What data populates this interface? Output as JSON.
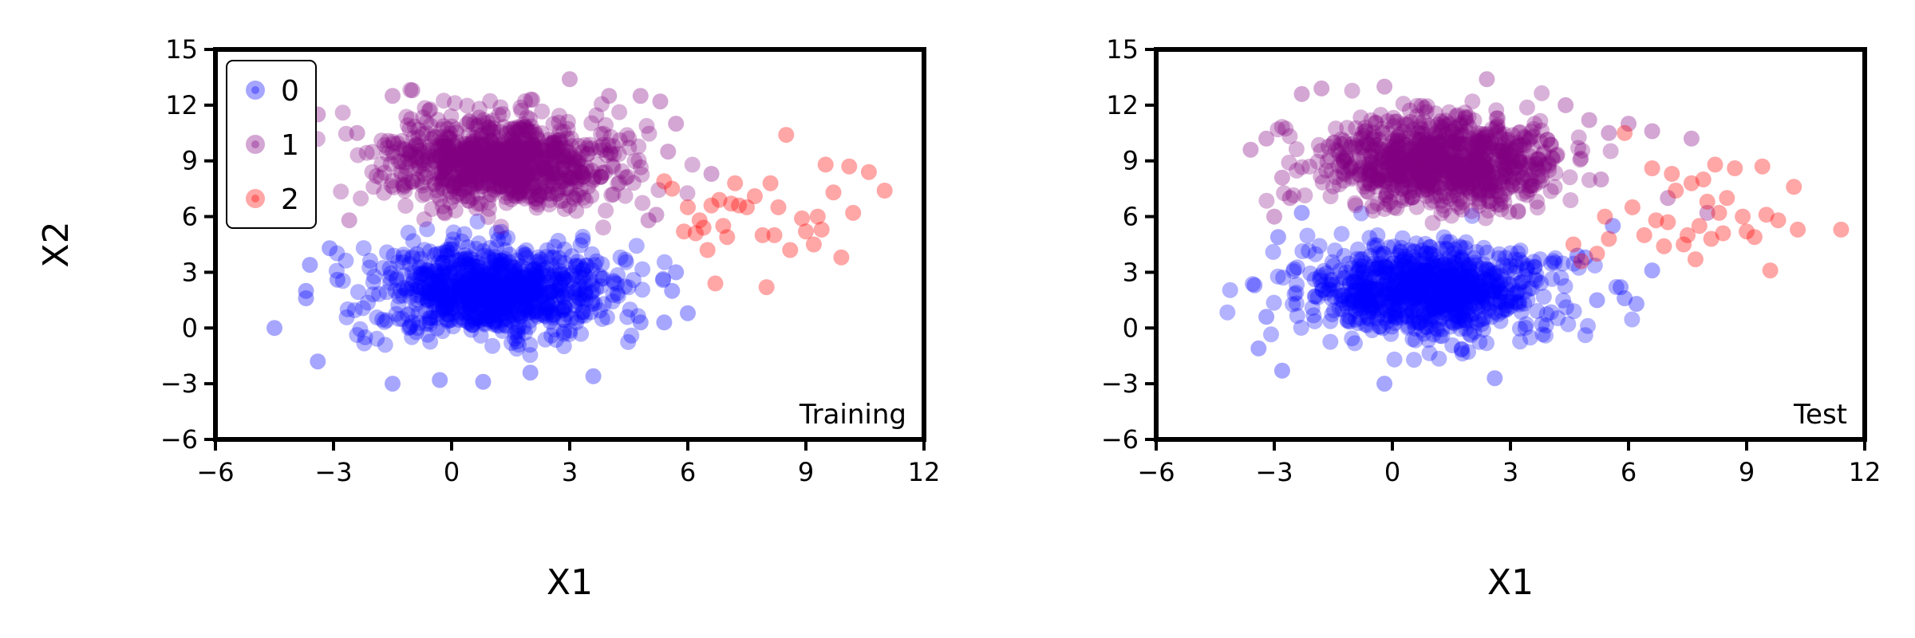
{
  "colors": {
    "0": "#0000ff",
    "1": "#800080",
    "2": "#ff0000"
  },
  "chart_data": [
    {
      "type": "scatter",
      "panel_label": "Training",
      "xlabel": "X1",
      "ylabel": "X2",
      "xlim": [
        -6,
        12
      ],
      "ylim": [
        -6,
        15
      ],
      "xticks": [
        -6,
        -3,
        0,
        3,
        6,
        9,
        12
      ],
      "yticks": [
        -6,
        -3,
        0,
        3,
        6,
        9,
        12,
        15
      ],
      "legend": {
        "placement": "top-left",
        "entries": [
          "0",
          "1",
          "2"
        ]
      },
      "grid": false,
      "clusters": [
        {
          "name": "0",
          "color": "#0000ff",
          "center": [
            1.0,
            2.0
          ],
          "spread": [
            1.5,
            1.2
          ],
          "count": 900
        },
        {
          "name": "1",
          "color": "#800080",
          "center": [
            1.3,
            8.9
          ],
          "spread": [
            1.5,
            1.2
          ],
          "count": 900
        }
      ],
      "series": [
        {
          "name": "0",
          "color": "#0000ff",
          "points": [
            [
              -4.5,
              0
            ],
            [
              -3.4,
              -1.8
            ],
            [
              -3.7,
              1.6
            ],
            [
              -3.7,
              2.0
            ],
            [
              -3.6,
              3.4
            ],
            [
              -3.1,
              4.3
            ],
            [
              -2.9,
              2.6
            ],
            [
              -1.5,
              -3.0
            ],
            [
              0.8,
              -2.9
            ],
            [
              -0.3,
              -2.8
            ],
            [
              3.6,
              -2.6
            ],
            [
              4.8,
              0.3
            ],
            [
              5.4,
              0.3
            ],
            [
              5.6,
              2.0
            ],
            [
              5.7,
              3.0
            ],
            [
              6.0,
              0.8
            ],
            [
              2.0,
              -2.4
            ]
          ]
        },
        {
          "name": "1",
          "color": "#800080",
          "points": [
            [
              -4.5,
              12.0
            ],
            [
              -3.4,
              11.5
            ],
            [
              -3.7,
              7.8
            ],
            [
              -2.6,
              5.8
            ],
            [
              -2.4,
              10.5
            ],
            [
              -1.5,
              12.5
            ],
            [
              -1.0,
              12.8
            ],
            [
              3.0,
              13.4
            ],
            [
              4.0,
              12.5
            ],
            [
              4.8,
              12.5
            ],
            [
              5.3,
              12.2
            ],
            [
              5.7,
              11.0
            ],
            [
              5.5,
              9.5
            ],
            [
              6.6,
              8.3
            ],
            [
              5.2,
              6.1
            ],
            [
              5.0,
              5.8
            ],
            [
              2.3,
              8.9
            ]
          ]
        },
        {
          "name": "2",
          "color": "#ff0000",
          "points": [
            [
              5.4,
              7.9
            ],
            [
              5.6,
              7.5
            ],
            [
              5.9,
              5.2
            ],
            [
              6.0,
              6.5
            ],
            [
              6.2,
              5.1
            ],
            [
              6.4,
              5.4
            ],
            [
              6.5,
              4.2
            ],
            [
              6.6,
              6.6
            ],
            [
              6.7,
              2.4
            ],
            [
              6.8,
              6.9
            ],
            [
              6.9,
              5.5
            ],
            [
              7.0,
              4.9
            ],
            [
              7.1,
              6.7
            ],
            [
              7.2,
              7.8
            ],
            [
              7.3,
              6.6
            ],
            [
              7.5,
              6.5
            ],
            [
              7.7,
              7.1
            ],
            [
              7.9,
              5.0
            ],
            [
              8.0,
              2.2
            ],
            [
              8.1,
              7.8
            ],
            [
              8.3,
              6.5
            ],
            [
              8.5,
              10.4
            ],
            [
              8.6,
              4.2
            ],
            [
              8.9,
              5.9
            ],
            [
              9.0,
              5.2
            ],
            [
              9.2,
              4.5
            ],
            [
              9.3,
              6.0
            ],
            [
              9.4,
              5.3
            ],
            [
              9.5,
              8.8
            ],
            [
              9.7,
              7.3
            ],
            [
              9.9,
              3.8
            ],
            [
              10.1,
              8.7
            ],
            [
              10.2,
              6.2
            ],
            [
              10.6,
              8.4
            ],
            [
              11.0,
              7.4
            ],
            [
              8.2,
              5.0
            ],
            [
              6.3,
              5.8
            ]
          ]
        }
      ]
    },
    {
      "type": "scatter",
      "panel_label": "Test",
      "xlabel": "X1",
      "ylabel": "",
      "xlim": [
        -6,
        12
      ],
      "ylim": [
        -6,
        15
      ],
      "xticks": [
        -6,
        -3,
        0,
        3,
        6,
        9,
        12
      ],
      "yticks": [
        -6,
        -3,
        0,
        3,
        6,
        9,
        12,
        15
      ],
      "grid": false,
      "clusters": [
        {
          "name": "0",
          "color": "#0000ff",
          "center": [
            1.0,
            2.0
          ],
          "spread": [
            1.5,
            1.2
          ],
          "count": 900
        },
        {
          "name": "1",
          "color": "#800080",
          "center": [
            1.3,
            8.9
          ],
          "spread": [
            1.5,
            1.2
          ],
          "count": 900
        }
      ],
      "series": [
        {
          "name": "0",
          "color": "#0000ff",
          "points": [
            [
              -3.5,
              2.3
            ],
            [
              -3.4,
              -1.1
            ],
            [
              -3.2,
              0.6
            ],
            [
              -2.9,
              4.9
            ],
            [
              -2.8,
              -2.3
            ],
            [
              -2.3,
              6.2
            ],
            [
              -0.2,
              -3.0
            ],
            [
              2.6,
              -2.7
            ],
            [
              3.3,
              3.5
            ],
            [
              4.7,
              3.9
            ],
            [
              4.9,
              3.8
            ],
            [
              5.2,
              1.5
            ],
            [
              5.6,
              5.5
            ],
            [
              5.8,
              2.2
            ],
            [
              5.9,
              1.6
            ],
            [
              6.6,
              3.1
            ],
            [
              6.2,
              1.3
            ]
          ]
        },
        {
          "name": "1",
          "color": "#800080",
          "points": [
            [
              -3.6,
              9.6
            ],
            [
              -3.2,
              10.2
            ],
            [
              -3.0,
              6.0
            ],
            [
              -2.8,
              8.1
            ],
            [
              -2.6,
              7.0
            ],
            [
              -2.3,
              12.6
            ],
            [
              -1.8,
              12.9
            ],
            [
              -0.2,
              13.0
            ],
            [
              2.4,
              13.4
            ],
            [
              4.4,
              12.0
            ],
            [
              5.0,
              11.2
            ],
            [
              5.5,
              10.5
            ],
            [
              5.3,
              8.0
            ],
            [
              6.0,
              11.0
            ],
            [
              6.6,
              10.6
            ],
            [
              7.6,
              10.2
            ],
            [
              7.0,
              7.0
            ],
            [
              8.0,
              6.2
            ]
          ]
        },
        {
          "name": "2",
          "color": "#ff0000",
          "points": [
            [
              4.6,
              4.5
            ],
            [
              4.8,
              3.6
            ],
            [
              5.2,
              4.0
            ],
            [
              5.4,
              6.0
            ],
            [
              5.5,
              4.8
            ],
            [
              5.9,
              10.5
            ],
            [
              6.1,
              6.5
            ],
            [
              6.4,
              5.0
            ],
            [
              6.6,
              8.6
            ],
            [
              6.7,
              5.8
            ],
            [
              6.9,
              4.4
            ],
            [
              7.0,
              5.7
            ],
            [
              7.1,
              8.3
            ],
            [
              7.2,
              7.4
            ],
            [
              7.4,
              4.5
            ],
            [
              7.5,
              5.0
            ],
            [
              7.6,
              7.8
            ],
            [
              7.7,
              3.7
            ],
            [
              7.8,
              5.5
            ],
            [
              7.9,
              8.0
            ],
            [
              8.0,
              6.8
            ],
            [
              8.1,
              4.8
            ],
            [
              8.2,
              8.8
            ],
            [
              8.3,
              6.2
            ],
            [
              8.4,
              5.1
            ],
            [
              8.5,
              7.0
            ],
            [
              8.7,
              8.6
            ],
            [
              8.9,
              6.0
            ],
            [
              9.0,
              5.2
            ],
            [
              9.2,
              4.9
            ],
            [
              9.4,
              8.7
            ],
            [
              9.5,
              6.1
            ],
            [
              9.6,
              3.1
            ],
            [
              9.8,
              5.8
            ],
            [
              10.2,
              7.6
            ],
            [
              10.3,
              5.3
            ],
            [
              11.4,
              5.3
            ]
          ]
        }
      ]
    }
  ]
}
